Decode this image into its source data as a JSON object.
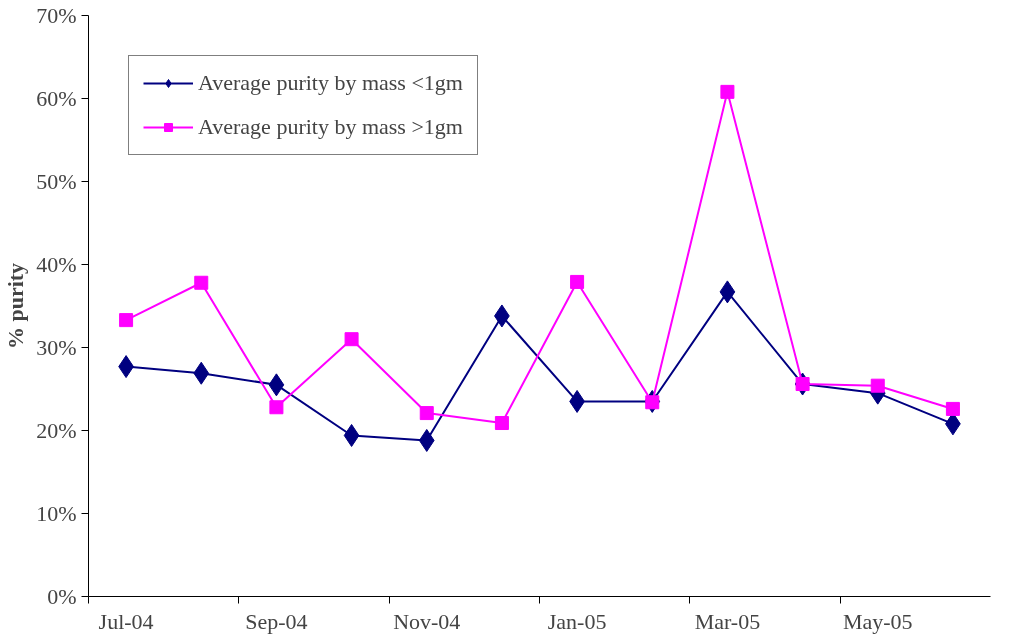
{
  "chart_data": {
    "type": "line",
    "ylabel": "% purity",
    "categories": [
      "Jul-04",
      null,
      "Sep-04",
      null,
      "Nov-04",
      null,
      "Jan-05",
      null,
      "Mar-05",
      null,
      "May-05",
      null
    ],
    "series": [
      {
        "name": "Average purity by mass <1gm",
        "color": "#000080",
        "marker": "diamond",
        "values": [
          27.7,
          26.9,
          25.5,
          19.4,
          18.8,
          33.8,
          23.5,
          23.5,
          36.7,
          25.6,
          24.5,
          20.8
        ]
      },
      {
        "name": "Average purity by mass >1gm",
        "color": "#ff00ff",
        "marker": "square",
        "values": [
          33.3,
          37.8,
          22.8,
          31.0,
          22.1,
          20.9,
          37.9,
          23.4,
          60.8,
          25.6,
          25.4,
          22.6
        ]
      }
    ],
    "ylim": [
      0,
      70
    ],
    "yticks": [
      {
        "value": 0,
        "label": "0%"
      },
      {
        "value": 10,
        "label": "10%"
      },
      {
        "value": 20,
        "label": "20%"
      },
      {
        "value": 30,
        "label": "30%"
      },
      {
        "value": 40,
        "label": "40%"
      },
      {
        "value": 50,
        "label": "50%"
      },
      {
        "value": 60,
        "label": "60%"
      },
      {
        "value": 70,
        "label": "70%"
      }
    ],
    "legend": "top left",
    "grid": false,
    "line_style": "solid"
  }
}
